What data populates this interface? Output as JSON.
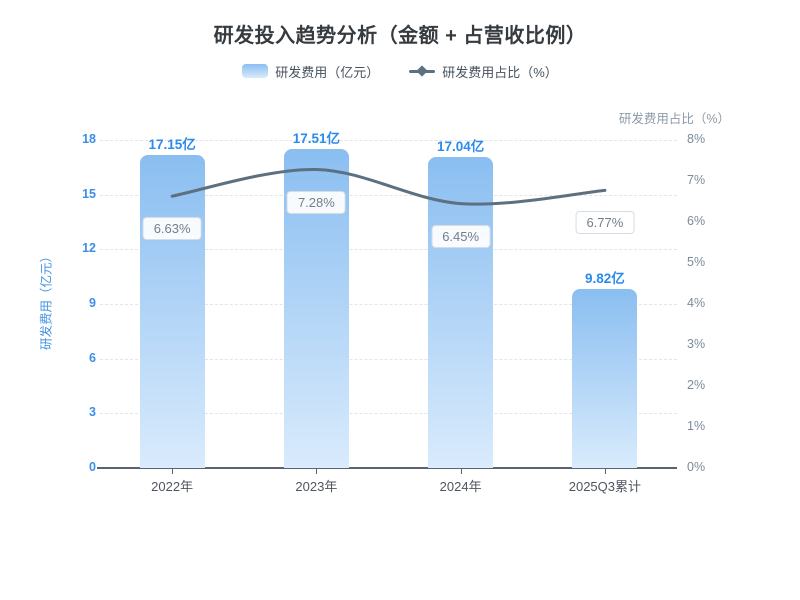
{
  "title": "研发投入趋势分析（金额 + 占营收比例）",
  "legend": {
    "bar_label": "研发费用（亿元）",
    "line_label": "研发费用占比（%）"
  },
  "colors": {
    "title": "#363b40",
    "legend_text": "#46525e",
    "bar_gradient_top": "#8abef1",
    "bar_gradient_bottom": "#d9ebfc",
    "bar_value": "#2b8bea",
    "line": "#5d7080",
    "pct_label": "#727e8a",
    "left_axis": "#3c8ee6",
    "left_axis_name": "#4694e4",
    "right_axis": "#7d8b98",
    "right_axis_name": "#8b9aa8",
    "x_label": "#4e5660",
    "axis_line": "#5a646e",
    "grid": "#e1e6ec"
  },
  "chart_data": {
    "type": "bar",
    "subtype": "bar-line-combo",
    "categories": [
      "2022年",
      "2023年",
      "2024年",
      "2025Q3累计"
    ],
    "series": [
      {
        "name": "研发费用（亿元）",
        "type": "bar",
        "axis": "left",
        "values": [
          17.15,
          17.51,
          17.04,
          9.82
        ],
        "labels": [
          "17.15亿",
          "17.51亿",
          "17.04亿",
          "9.82亿"
        ]
      },
      {
        "name": "研发费用占比（%）",
        "type": "line",
        "axis": "right",
        "smooth": true,
        "values": [
          6.63,
          7.28,
          6.45,
          6.77
        ],
        "labels": [
          "6.63%",
          "7.28%",
          "6.45%",
          "6.77%"
        ]
      }
    ],
    "left_axis": {
      "name": "研发费用（亿元）",
      "min": 0,
      "max": 18,
      "step": 3,
      "tick_labels": [
        "0",
        "3",
        "6",
        "9",
        "12",
        "15",
        "18"
      ]
    },
    "right_axis": {
      "name": "研发费用占比（%）",
      "min": 0,
      "max": 8,
      "step": 1,
      "tick_labels": [
        "0%",
        "1%",
        "2%",
        "3%",
        "4%",
        "5%",
        "6%",
        "7%",
        "8%"
      ]
    },
    "grid": "horizontal-dashed",
    "legend_position": "top-center"
  }
}
